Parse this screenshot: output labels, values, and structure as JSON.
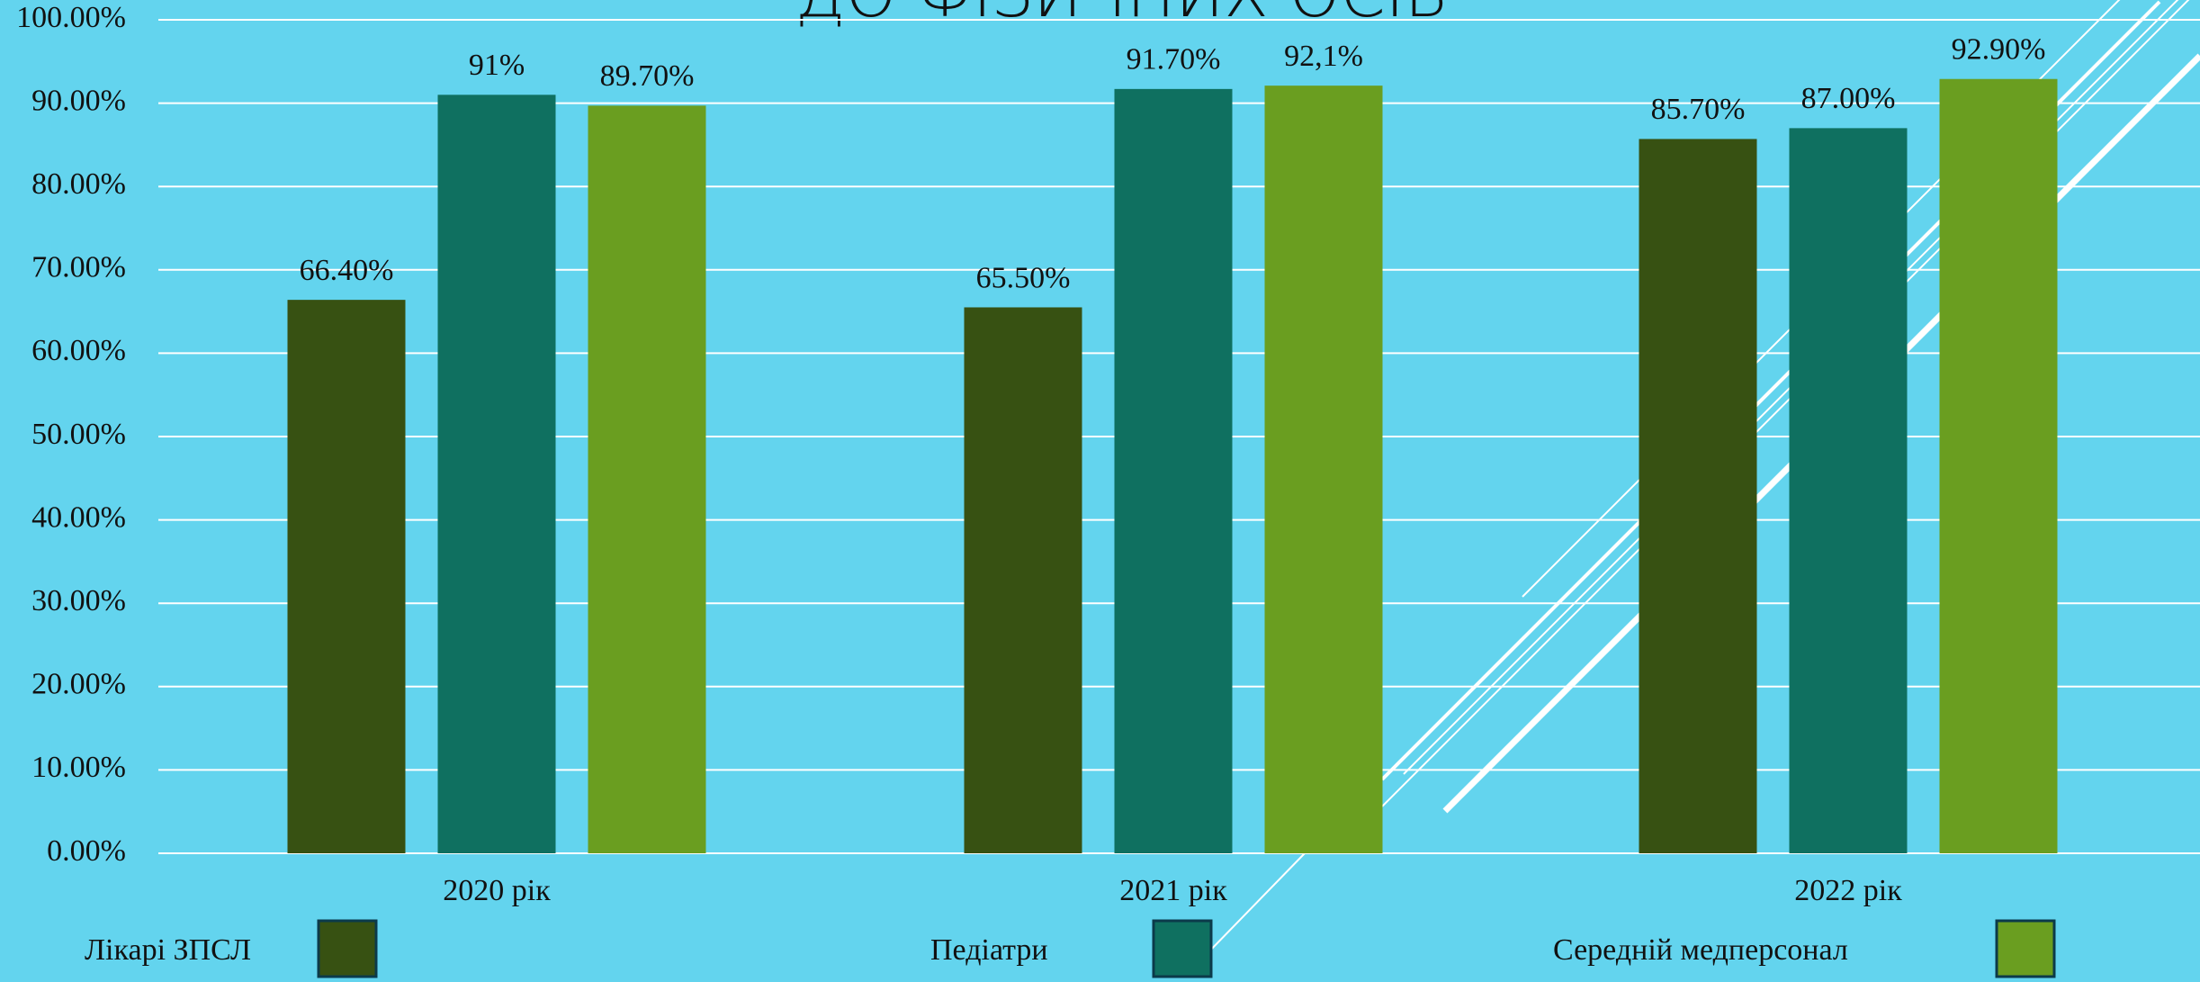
{
  "chart_data": {
    "type": "bar",
    "title": "ДО ФІЗИЧНИХ ОСІБ",
    "categories": [
      "2020 рік",
      "2021 рік",
      "2022 рік"
    ],
    "series": [
      {
        "name": "Лікарі ЗПСЛ",
        "color": "#375112",
        "values": [
          66.4,
          65.5,
          85.7
        ],
        "value_labels": [
          "66.40%",
          "65.50%",
          "85.70%"
        ]
      },
      {
        "name": "Педіатри",
        "color": "#0f7060",
        "values": [
          91,
          91.7,
          87
        ],
        "value_labels": [
          "91%",
          "91.70%",
          "87.00%"
        ]
      },
      {
        "name": "Середній медперсонал",
        "color": "#6a9e20",
        "values": [
          89.7,
          92.1,
          92.9
        ],
        "value_labels": [
          "89.70%",
          "92,1%",
          "92.90%"
        ]
      }
    ],
    "ylim": [
      0,
      100
    ],
    "yticks": [
      {
        "value": 0,
        "label": "0.00%"
      },
      {
        "value": 10,
        "label": "10.00%"
      },
      {
        "value": 20,
        "label": "20.00%"
      },
      {
        "value": 30,
        "label": "30.00%"
      },
      {
        "value": 40,
        "label": "40.00%"
      },
      {
        "value": 50,
        "label": "50.00%"
      },
      {
        "value": 60,
        "label": "60.00%"
      },
      {
        "value": 70,
        "label": "70.00%"
      },
      {
        "value": 80,
        "label": "80.00%"
      },
      {
        "value": 90,
        "label": "90.00%"
      },
      {
        "value": 100,
        "label": "100.00%"
      }
    ],
    "grid": true,
    "legend": "bottom"
  }
}
